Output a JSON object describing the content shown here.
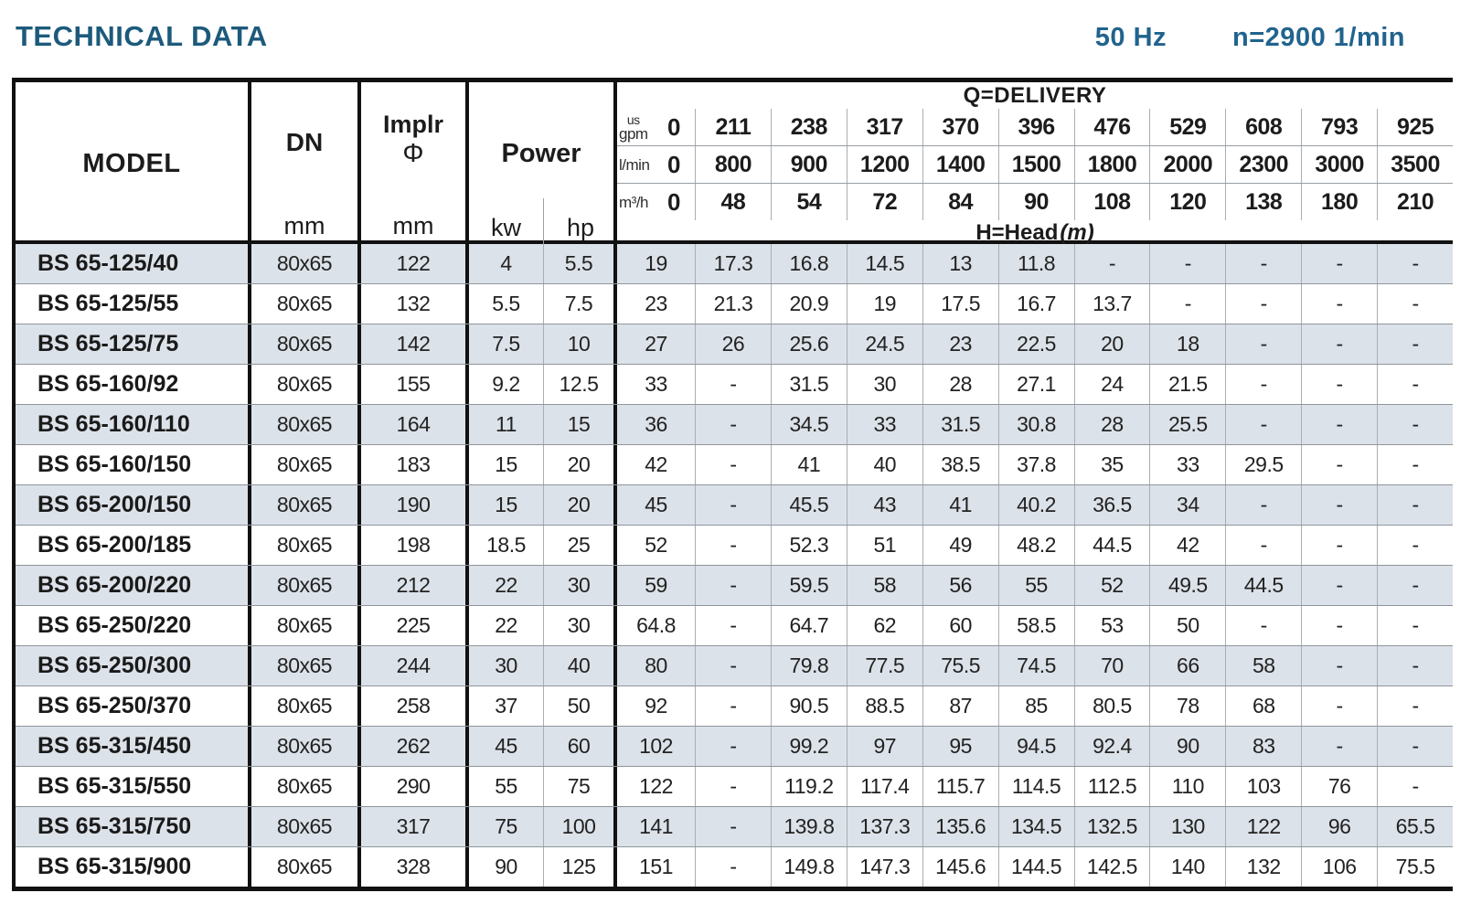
{
  "page": {
    "title": "TECHNICAL DATA",
    "frequency": "50 Hz",
    "speed": "n=2900 1/min",
    "accent_color": "#21638e",
    "stripe_color": "#dce2e9"
  },
  "table": {
    "headers": {
      "model": "MODEL",
      "dn": "DN",
      "dn_unit": "mm",
      "impeller_line1": "Implr",
      "impeller_symbol": "Φ",
      "impeller_unit": "mm",
      "power": "Power",
      "power_kw": "kw",
      "power_hp": "hp",
      "delivery_title": "Q=DELIVERY",
      "head_label": "H=Head",
      "head_unit": "(m)",
      "unit_rows": [
        {
          "label_top": "us",
          "label": "gpm",
          "values": [
            "0",
            "211",
            "238",
            "317",
            "370",
            "396",
            "476",
            "529",
            "608",
            "793",
            "925"
          ]
        },
        {
          "label_top": "",
          "label": "l/min",
          "values": [
            "0",
            "800",
            "900",
            "1200",
            "1400",
            "1500",
            "1800",
            "2000",
            "2300",
            "3000",
            "3500"
          ]
        },
        {
          "label_top": "",
          "label": "m³/h",
          "values": [
            "0",
            "48",
            "54",
            "72",
            "84",
            "90",
            "108",
            "120",
            "138",
            "180",
            "210"
          ]
        }
      ]
    },
    "rows": [
      {
        "model": "BS 65-125/40",
        "dn": "80x65",
        "impeller": "122",
        "kw": "4",
        "hp": "5.5",
        "heads": [
          "19",
          "17.3",
          "16.8",
          "14.5",
          "13",
          "11.8",
          "-",
          "-",
          "-",
          "-",
          "-"
        ]
      },
      {
        "model": "BS 65-125/55",
        "dn": "80x65",
        "impeller": "132",
        "kw": "5.5",
        "hp": "7.5",
        "heads": [
          "23",
          "21.3",
          "20.9",
          "19",
          "17.5",
          "16.7",
          "13.7",
          "-",
          "-",
          "-",
          "-"
        ]
      },
      {
        "model": "BS 65-125/75",
        "dn": "80x65",
        "impeller": "142",
        "kw": "7.5",
        "hp": "10",
        "heads": [
          "27",
          "26",
          "25.6",
          "24.5",
          "23",
          "22.5",
          "20",
          "18",
          "-",
          "-",
          "-"
        ]
      },
      {
        "model": "BS 65-160/92",
        "dn": "80x65",
        "impeller": "155",
        "kw": "9.2",
        "hp": "12.5",
        "heads": [
          "33",
          "-",
          "31.5",
          "30",
          "28",
          "27.1",
          "24",
          "21.5",
          "-",
          "-",
          "-"
        ]
      },
      {
        "model": "BS 65-160/110",
        "dn": "80x65",
        "impeller": "164",
        "kw": "11",
        "hp": "15",
        "heads": [
          "36",
          "-",
          "34.5",
          "33",
          "31.5",
          "30.8",
          "28",
          "25.5",
          "-",
          "-",
          "-"
        ]
      },
      {
        "model": "BS 65-160/150",
        "dn": "80x65",
        "impeller": "183",
        "kw": "15",
        "hp": "20",
        "heads": [
          "42",
          "-",
          "41",
          "40",
          "38.5",
          "37.8",
          "35",
          "33",
          "29.5",
          "-",
          "-"
        ]
      },
      {
        "model": "BS 65-200/150",
        "dn": "80x65",
        "impeller": "190",
        "kw": "15",
        "hp": "20",
        "heads": [
          "45",
          "-",
          "45.5",
          "43",
          "41",
          "40.2",
          "36.5",
          "34",
          "-",
          "-",
          "-"
        ]
      },
      {
        "model": "BS 65-200/185",
        "dn": "80x65",
        "impeller": "198",
        "kw": "18.5",
        "hp": "25",
        "heads": [
          "52",
          "-",
          "52.3",
          "51",
          "49",
          "48.2",
          "44.5",
          "42",
          "-",
          "-",
          "-"
        ]
      },
      {
        "model": "BS 65-200/220",
        "dn": "80x65",
        "impeller": "212",
        "kw": "22",
        "hp": "30",
        "heads": [
          "59",
          "-",
          "59.5",
          "58",
          "56",
          "55",
          "52",
          "49.5",
          "44.5",
          "-",
          "-"
        ]
      },
      {
        "model": "BS 65-250/220",
        "dn": "80x65",
        "impeller": "225",
        "kw": "22",
        "hp": "30",
        "heads": [
          "64.8",
          "-",
          "64.7",
          "62",
          "60",
          "58.5",
          "53",
          "50",
          "-",
          "-",
          "-"
        ]
      },
      {
        "model": "BS 65-250/300",
        "dn": "80x65",
        "impeller": "244",
        "kw": "30",
        "hp": "40",
        "heads": [
          "80",
          "-",
          "79.8",
          "77.5",
          "75.5",
          "74.5",
          "70",
          "66",
          "58",
          "-",
          "-"
        ]
      },
      {
        "model": "BS 65-250/370",
        "dn": "80x65",
        "impeller": "258",
        "kw": "37",
        "hp": "50",
        "heads": [
          "92",
          "-",
          "90.5",
          "88.5",
          "87",
          "85",
          "80.5",
          "78",
          "68",
          "-",
          "-"
        ]
      },
      {
        "model": "BS 65-315/450",
        "dn": "80x65",
        "impeller": "262",
        "kw": "45",
        "hp": "60",
        "heads": [
          "102",
          "-",
          "99.2",
          "97",
          "95",
          "94.5",
          "92.4",
          "90",
          "83",
          "-",
          "-"
        ]
      },
      {
        "model": "BS 65-315/550",
        "dn": "80x65",
        "impeller": "290",
        "kw": "55",
        "hp": "75",
        "heads": [
          "122",
          "-",
          "119.2",
          "117.4",
          "115.7",
          "114.5",
          "112.5",
          "110",
          "103",
          "76",
          "-"
        ]
      },
      {
        "model": "BS 65-315/750",
        "dn": "80x65",
        "impeller": "317",
        "kw": "75",
        "hp": "100",
        "heads": [
          "141",
          "-",
          "139.8",
          "137.3",
          "135.6",
          "134.5",
          "132.5",
          "130",
          "122",
          "96",
          "65.5"
        ]
      },
      {
        "model": "BS 65-315/900",
        "dn": "80x65",
        "impeller": "328",
        "kw": "90",
        "hp": "125",
        "heads": [
          "151",
          "-",
          "149.8",
          "147.3",
          "145.6",
          "144.5",
          "142.5",
          "140",
          "132",
          "106",
          "75.5"
        ]
      }
    ]
  }
}
